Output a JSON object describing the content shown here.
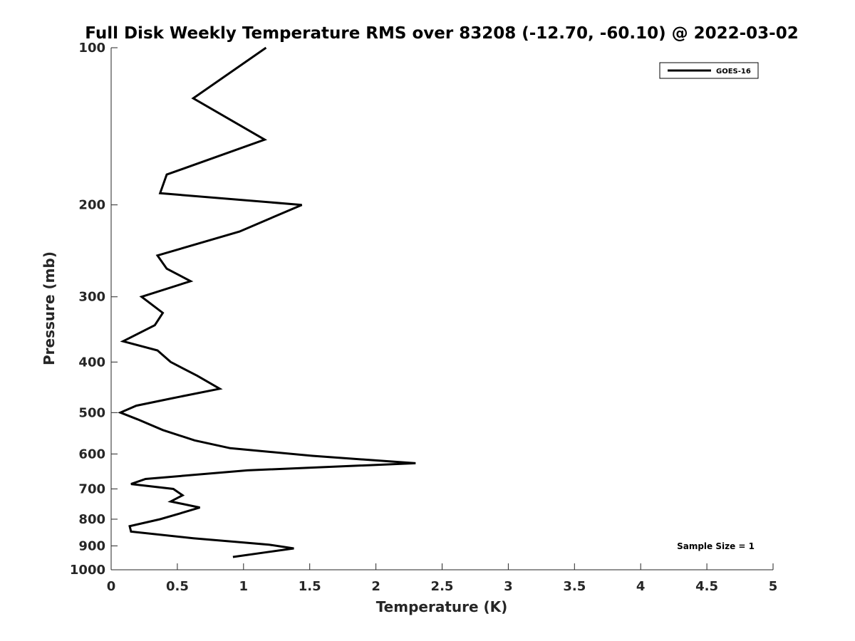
{
  "chart_data": {
    "type": "line",
    "title": "Full Disk Weekly Temperature RMS over 83208 (-12.70, -60.10) @ 2022-03-02",
    "xlabel": "Temperature (K)",
    "ylabel": "Pressure (mb)",
    "xlim": [
      0,
      5
    ],
    "ylim": [
      100,
      1000
    ],
    "y_scale": "log",
    "y_reversed": true,
    "grid": false,
    "legend_position": "top-right",
    "x_ticks": [
      0,
      0.5,
      1,
      1.5,
      2,
      2.5,
      3,
      3.5,
      4,
      4.5,
      5
    ],
    "x_tick_labels": [
      "0",
      "0.5",
      "1",
      "1.5",
      "2",
      "2.5",
      "3",
      "3.5",
      "4",
      "4.5",
      "5"
    ],
    "y_ticks": [
      100,
      200,
      300,
      400,
      500,
      600,
      700,
      800,
      900,
      1000
    ],
    "y_tick_labels": [
      "100",
      "200",
      "300",
      "400",
      "500",
      "600",
      "700",
      "800",
      "900",
      "1000"
    ],
    "series": [
      {
        "name": "GOES-16",
        "color": "#000000",
        "points": [
          [
            1.17,
            100
          ],
          [
            0.62,
            125
          ],
          [
            1.16,
            150
          ],
          [
            0.42,
            175
          ],
          [
            0.37,
            190
          ],
          [
            1.44,
            200
          ],
          [
            0.97,
            225
          ],
          [
            0.35,
            250
          ],
          [
            0.42,
            265
          ],
          [
            0.6,
            280
          ],
          [
            0.23,
            300
          ],
          [
            0.39,
            322
          ],
          [
            0.33,
            340
          ],
          [
            0.09,
            365
          ],
          [
            0.35,
            380
          ],
          [
            0.45,
            400
          ],
          [
            0.65,
            425
          ],
          [
            0.82,
            450
          ],
          [
            0.45,
            470
          ],
          [
            0.19,
            485
          ],
          [
            0.07,
            500
          ],
          [
            0.2,
            515
          ],
          [
            0.39,
            540
          ],
          [
            0.63,
            565
          ],
          [
            0.9,
            585
          ],
          [
            1.52,
            605
          ],
          [
            2.3,
            625
          ],
          [
            1.03,
            645
          ],
          [
            0.26,
            670
          ],
          [
            0.15,
            685
          ],
          [
            0.47,
            700
          ],
          [
            0.54,
            720
          ],
          [
            0.45,
            740
          ],
          [
            0.67,
            760
          ],
          [
            0.52,
            780
          ],
          [
            0.37,
            800
          ],
          [
            0.14,
            825
          ],
          [
            0.15,
            845
          ],
          [
            0.62,
            870
          ],
          [
            1.19,
            895
          ],
          [
            1.38,
            910
          ],
          [
            1.18,
            925
          ],
          [
            0.92,
            945
          ]
        ]
      }
    ],
    "annotations": [
      {
        "text": "Sample Size = 1",
        "position": "bottom-right"
      }
    ]
  }
}
